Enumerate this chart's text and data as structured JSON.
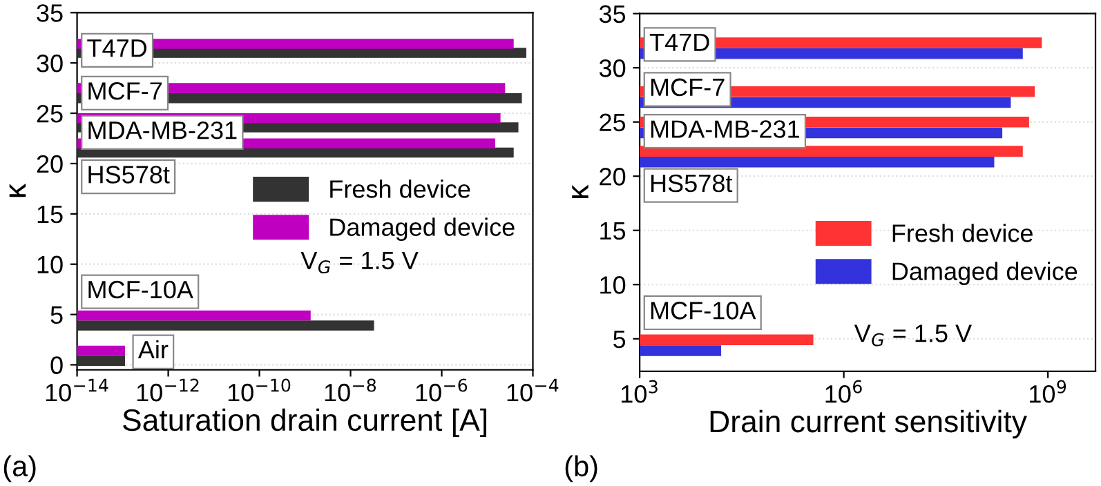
{
  "chart_data": [
    {
      "type": "bar",
      "orientation": "horizontal",
      "log": "x",
      "grid": "y",
      "legend": "right",
      "xlabel": "Saturation drain current [A]",
      "ylabel": "κ",
      "xlim": [
        1e-14,
        0.0001
      ],
      "xticks": [
        {
          "value": 1e-14,
          "label": "10$^{−14}$"
        },
        {
          "value": 1e-12,
          "label": "10$^{−12}$"
        },
        {
          "value": 1e-10,
          "label": "10$^{−10}$"
        },
        {
          "value": 1e-08,
          "label": "10$^{−8}$"
        },
        {
          "value": 1e-06,
          "label": "10$^{−6}$"
        },
        {
          "value": 0.0001,
          "label": "10$^{−4}$"
        }
      ],
      "ylim": [
        -0.5,
        35
      ],
      "yticks": [
        0,
        5,
        10,
        15,
        20,
        25,
        30,
        35
      ],
      "series": [
        {
          "name": "Fresh device",
          "color": "#333333",
          "x": [
            31.0,
            26.5,
            23.6,
            21.1,
            3.9,
            0.4
          ],
          "values": [
            7e-05,
            5.6e-05,
            4.7e-05,
            3.7e-05,
            3.2e-08,
            1e-13
          ]
        },
        {
          "name": "Damaged device",
          "color": "#c000c0",
          "x": [
            31.9,
            27.5,
            24.5,
            22.0,
            4.9,
            1.4
          ],
          "values": [
            3.7e-05,
            2.4e-05,
            1.9e-05,
            1.45e-05,
            1.3e-09,
            1e-13
          ]
        }
      ],
      "annotations": [
        {
          "text": "T47D",
          "x": 1e-14,
          "y": 31.45
        },
        {
          "text": "MCF-7",
          "x": 1e-14,
          "y": 27.0
        },
        {
          "text": "MDA-MB-231",
          "x": 1e-14,
          "y": 24.05
        },
        {
          "text": "HS578t",
          "x": 1e-14,
          "y": 21.55
        },
        {
          "text": "MCF-10A",
          "x": 1e-14,
          "y": 4.4
        },
        {
          "text": "Air",
          "x": 1e-13,
          "y": 0.9
        },
        "V$_{G}$ = 1.5 V",
        "(a)"
      ]
    },
    {
      "type": "bar",
      "orientation": "horizontal",
      "log": "x",
      "grid": "y",
      "legend": "right",
      "xlabel": "Drain current sensitivity",
      "ylabel": "κ",
      "xlim": [
        1000.0,
        5000000000.0
      ],
      "xticks": [
        {
          "value": 1000.0,
          "label": "10$^{3}$"
        },
        {
          "value": 1000000.0,
          "label": "10$^{6}$"
        },
        {
          "value": 1000000000.0,
          "label": "10$^{9}$"
        }
      ],
      "ylim": [
        2,
        35
      ],
      "yticks": [
        5,
        10,
        15,
        20,
        25,
        30,
        35
      ],
      "series": [
        {
          "name": "Fresh device",
          "color": "#ff3333",
          "x": [
            32.3,
            27.8,
            25.0,
            22.3,
            4.9
          ],
          "values": [
            800000000.0,
            630000000.0,
            520000000.0,
            420000000.0,
            350000.0
          ]
        },
        {
          "name": "Damaged device",
          "color": "#3333dd",
          "x": [
            31.3,
            26.8,
            24.0,
            21.3,
            3.9
          ],
          "values": [
            420000000.0,
            280000000.0,
            210000000.0,
            160000000.0,
            14500.0
          ]
        }
      ],
      "annotations": [
        {
          "text": "T47D",
          "x": 1000.0,
          "y": 31.8
        },
        {
          "text": "MCF-7",
          "x": 1000.0,
          "y": 27.3
        },
        {
          "text": "MDA-MB-231",
          "x": 1000.0,
          "y": 24.5
        },
        {
          "text": "HS578t",
          "x": 1000.0,
          "y": 21.8
        },
        {
          "text": "MCF-10A",
          "x": 1000.0,
          "y": 4.4
        },
        "V$_{G}$ = 1.5 V",
        "(b)"
      ]
    }
  ]
}
